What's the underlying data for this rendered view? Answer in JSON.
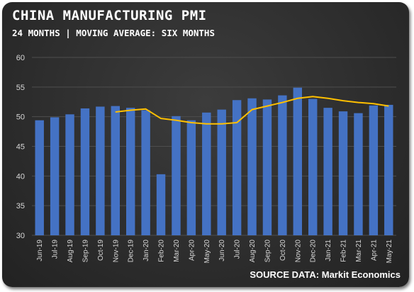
{
  "chart_data": {
    "type": "bar",
    "title": "CHINA MANUFACTURING PMI",
    "subtitle": "24 MONTHS | MOVING AVERAGE: SIX MONTHS",
    "source": "SOURCE DATA: Markit Economics",
    "categories": [
      "Jun-19",
      "Jul-19",
      "Aug-19",
      "Sep-19",
      "Oct-19",
      "Nov-19",
      "Dec-19",
      "Jan-20",
      "Feb-20",
      "Mar-20",
      "Apr-20",
      "May-20",
      "Jun-20",
      "Jul-20",
      "Aug-20",
      "Sep-20",
      "Oct-20",
      "Nov-20",
      "Dec-20",
      "Jan-21",
      "Feb-21",
      "Mar-21",
      "Apr-21",
      "May-21"
    ],
    "series": [
      {
        "type": "bar",
        "values": [
          49.4,
          49.9,
          50.4,
          51.4,
          51.7,
          51.8,
          51.5,
          51.1,
          40.3,
          50.1,
          49.4,
          50.7,
          51.2,
          52.8,
          53.1,
          52.9,
          53.6,
          54.9,
          53.0,
          51.5,
          50.9,
          50.6,
          51.9,
          52.0
        ]
      },
      {
        "type": "line",
        "values": [
          null,
          null,
          null,
          null,
          null,
          50.8,
          51.1,
          51.3,
          49.7,
          49.4,
          49.0,
          48.8,
          48.8,
          49.0,
          51.2,
          51.8,
          52.4,
          53.1,
          53.4,
          53.1,
          52.7,
          52.4,
          52.2,
          51.8
        ]
      }
    ],
    "ylim": [
      30,
      60
    ],
    "yticks": [
      30,
      35,
      40,
      45,
      50,
      55,
      60
    ],
    "grid": true,
    "legend": "none",
    "colors": {
      "bar": "#4472c4",
      "line": "#ffc000",
      "grid": "#4e4e4e",
      "text": "#d8d8d8"
    }
  }
}
